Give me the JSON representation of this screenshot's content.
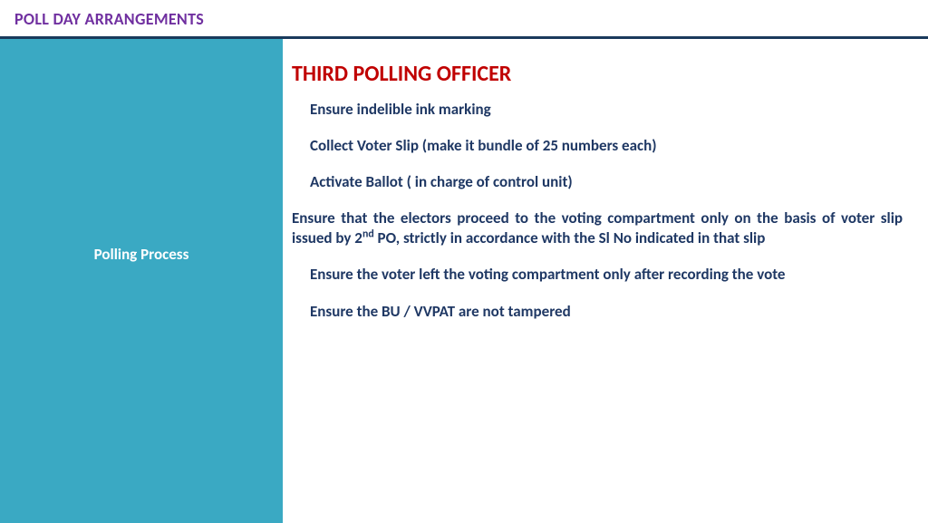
{
  "header": {
    "title": "POLL DAY ARRANGEMENTS"
  },
  "sidebar": {
    "label": "Polling Process"
  },
  "main": {
    "title": "THIRD POLLING  OFFICER",
    "bullets": [
      "Ensure indelible ink marking",
      "Collect Voter Slip (make it bundle of 25 numbers each)",
      "Activate Ballot ( in charge of control unit)",
      "Ensure that the electors proceed to the voting compartment only on the basis of voter slip issued by 2",
      " PO, strictly in accordance with the Sl No indicated in that slip",
      "Ensure the voter left the voting compartment only after recording the vote",
      "Ensure the BU / VVPAT are not tampered"
    ],
    "superscript": "nd"
  },
  "colors": {
    "header_title": "#7030a0",
    "header_border": "#1a3a5c",
    "sidebar_bg": "#3aa9c3",
    "sidebar_text": "#ffffff",
    "main_title": "#c00000",
    "bullet_text": "#1f3864",
    "page_bg": "#ffffff"
  }
}
